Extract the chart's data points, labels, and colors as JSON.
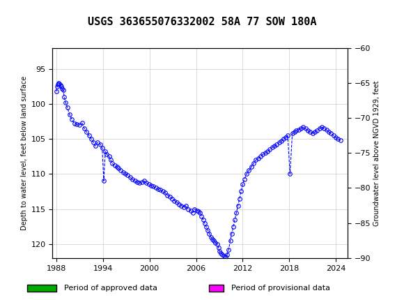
{
  "title": "USGS 363655076332002 58A 77 SOW 180A",
  "ylabel_left": "Depth to water level, feet below land surface",
  "ylabel_right": "Groundwater level above NGVD 1929, feet",
  "ylim_left": [
    122,
    92
  ],
  "ylim_right": [
    -90,
    -60
  ],
  "yticks_left": [
    95,
    100,
    105,
    110,
    115,
    120
  ],
  "yticks_right": [
    -60,
    -65,
    -70,
    -75,
    -80,
    -85,
    -90
  ],
  "xlim": [
    1987.5,
    2025.5
  ],
  "xticks": [
    1988,
    1994,
    2000,
    2006,
    2012,
    2018,
    2024
  ],
  "header_color": "#1a6b3c",
  "header_text_color": "#ffffff",
  "plot_bg": "#ffffff",
  "grid_color": "#cccccc",
  "line_color": "#0000ff",
  "marker_color": "#0000ff",
  "marker_face": "none",
  "legend_approved_color": "#00aa00",
  "legend_provisional_color": "#ff00ff",
  "approved_bar_end": 2023.5,
  "provisional_bar_start": 2023.5,
  "provisional_bar_end": 2025.5,
  "data_x": [
    1988.0,
    1988.1,
    1988.2,
    1988.3,
    1988.4,
    1988.5,
    1988.6,
    1988.7,
    1988.9,
    1989.0,
    1989.2,
    1989.4,
    1989.7,
    1990.0,
    1990.3,
    1990.6,
    1991.0,
    1991.3,
    1991.6,
    1991.9,
    1992.2,
    1992.5,
    1992.8,
    1993.0,
    1993.3,
    1993.7,
    1993.9,
    1994.1,
    1994.3,
    1994.5,
    1994.8,
    1995.0,
    1995.2,
    1995.5,
    1995.8,
    1996.0,
    1996.3,
    1996.6,
    1996.9,
    1997.2,
    1997.5,
    1997.8,
    1998.1,
    1998.4,
    1998.7,
    1999.0,
    1999.3,
    1999.6,
    1999.9,
    2000.2,
    2000.5,
    2000.8,
    2001.1,
    2001.4,
    2001.7,
    2002.0,
    2002.3,
    2002.6,
    2002.9,
    2003.2,
    2003.5,
    2003.8,
    2004.1,
    2004.4,
    2004.7,
    2005.0,
    2005.3,
    2005.6,
    2005.8,
    2006.1,
    2006.3,
    2006.5,
    2006.7,
    2006.9,
    2007.1,
    2007.3,
    2007.5,
    2007.7,
    2007.9,
    2008.1,
    2008.3,
    2008.5,
    2008.7,
    2008.9,
    2009.0,
    2009.2,
    2009.4,
    2009.6,
    2009.8,
    2010.0,
    2010.2,
    2010.4,
    2010.6,
    2010.8,
    2011.0,
    2011.2,
    2011.4,
    2011.6,
    2011.8,
    2012.0,
    2012.2,
    2012.5,
    2012.8,
    2013.1,
    2013.4,
    2013.7,
    2014.0,
    2014.3,
    2014.6,
    2014.9,
    2015.2,
    2015.5,
    2015.8,
    2016.1,
    2016.4,
    2016.7,
    2017.0,
    2017.3,
    2017.5,
    2017.8,
    2018.1,
    2018.4,
    2018.7,
    2018.9,
    2019.2,
    2019.5,
    2019.8,
    2020.1,
    2020.4,
    2020.7,
    2021.0,
    2021.3,
    2021.6,
    2021.9,
    2022.2,
    2022.5,
    2022.8,
    2023.1,
    2023.4,
    2023.7,
    2024.0,
    2024.3,
    2024.6
  ],
  "data_y": [
    98.2,
    97.5,
    97.2,
    97.0,
    97.1,
    97.3,
    97.5,
    97.8,
    98.0,
    99.0,
    99.8,
    100.5,
    101.5,
    102.2,
    102.8,
    102.9,
    103.0,
    102.7,
    103.5,
    104.0,
    104.5,
    105.0,
    105.5,
    106.0,
    105.5,
    105.8,
    106.3,
    111.0,
    106.8,
    107.2,
    107.5,
    108.0,
    108.5,
    108.8,
    109.0,
    109.2,
    109.5,
    109.8,
    110.0,
    110.2,
    110.5,
    110.8,
    111.0,
    111.2,
    111.3,
    111.2,
    111.0,
    111.3,
    111.5,
    111.7,
    111.8,
    112.0,
    112.2,
    112.3,
    112.5,
    112.7,
    113.0,
    113.2,
    113.5,
    113.8,
    114.0,
    114.3,
    114.5,
    114.7,
    114.5,
    115.0,
    115.2,
    115.5,
    115.0,
    115.2,
    115.3,
    115.5,
    116.0,
    116.5,
    117.0,
    117.5,
    118.0,
    118.5,
    119.0,
    119.3,
    119.5,
    119.8,
    120.0,
    120.5,
    121.0,
    121.3,
    121.5,
    121.7,
    121.8,
    121.5,
    120.8,
    119.5,
    118.5,
    117.5,
    116.5,
    115.5,
    114.5,
    113.5,
    112.5,
    111.5,
    110.8,
    110.0,
    109.5,
    109.0,
    108.5,
    108.0,
    107.8,
    107.5,
    107.2,
    107.0,
    106.8,
    106.5,
    106.2,
    106.0,
    105.8,
    105.5,
    105.3,
    105.0,
    104.8,
    104.5,
    110.0,
    104.2,
    104.0,
    103.8,
    103.7,
    103.5,
    103.3,
    103.5,
    103.8,
    104.0,
    104.2,
    104.0,
    103.8,
    103.5,
    103.3,
    103.5,
    103.7,
    104.0,
    104.2,
    104.5,
    104.8,
    105.0,
    105.2
  ]
}
